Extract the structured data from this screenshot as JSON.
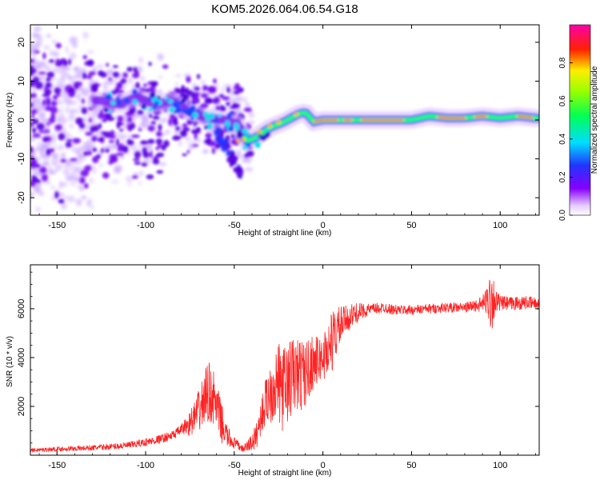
{
  "title": "KOM5.2026.064.06.54.G18",
  "chart_data": [
    {
      "type": "heatmap",
      "title": "KOM5.2026.064.06.54.G18",
      "xlabel": "Height of straight line (km)",
      "ylabel": "Frequency (Hz)",
      "xlim": [
        -165,
        122
      ],
      "ylim": [
        -24.5,
        24.5
      ],
      "xticks": [
        "-150",
        "-100",
        "-50",
        "0",
        "50",
        "100"
      ],
      "xtick_values": [
        -150,
        -100,
        -50,
        0,
        50,
        100
      ],
      "yticks": [
        "20",
        "10",
        "0",
        "-10",
        "-20"
      ],
      "ytick_values": [
        20,
        10,
        0,
        -10,
        -20
      ],
      "ridge": {
        "x": [
          -125,
          -115,
          -105,
          -95,
          -85,
          -75,
          -65,
          -55,
          -48,
          -43,
          -38,
          -30,
          -22,
          -14,
          -10,
          -5,
          0,
          10,
          20,
          30,
          40,
          50,
          60,
          70,
          80,
          90,
          100,
          110,
          120
        ],
        "y": [
          5,
          4,
          6,
          4,
          5,
          2,
          0.5,
          0,
          -1,
          -5.5,
          -4.5,
          -2,
          -0.5,
          1.5,
          2,
          -0.5,
          0,
          0,
          0,
          0,
          0,
          0,
          1,
          0.5,
          0.5,
          1,
          0.5,
          1,
          0.5
        ]
      },
      "colorbar": {
        "label": "Normalized spectral amplitude",
        "range": [
          0,
          1
        ],
        "ticks": [
          "0.0",
          "0.2",
          "0.4",
          "0.6",
          "0.8"
        ],
        "tick_values": [
          0.0,
          0.2,
          0.4,
          0.6,
          0.8
        ]
      }
    },
    {
      "type": "line",
      "xlabel": "Height of straight line (km)",
      "ylabel": "SNR (10 * v/v)",
      "xlim": [
        -165,
        122
      ],
      "ylim": [
        0,
        7800
      ],
      "xticks": [
        "-150",
        "-100",
        "-50",
        "0",
        "50",
        "100"
      ],
      "xtick_values": [
        -150,
        -100,
        -50,
        0,
        50,
        100
      ],
      "yticks": [
        "2000",
        "4000",
        "6000"
      ],
      "ytick_values": [
        2000,
        4000,
        6000
      ],
      "color": "#ff2222",
      "series": [
        {
          "name": "SNR",
          "x": [
            -165,
            -150,
            -130,
            -110,
            -95,
            -85,
            -75,
            -70,
            -65,
            -62,
            -58,
            -55,
            -52,
            -48,
            -45,
            -42,
            -38,
            -34,
            -30,
            -26,
            -22,
            -18,
            -14,
            -10,
            -6,
            -2,
            0,
            4,
            8,
            12,
            16,
            20,
            25,
            30,
            35,
            40,
            50,
            60,
            70,
            80,
            88,
            92,
            95,
            98,
            105,
            115,
            122
          ],
          "y": [
            200,
            250,
            300,
            400,
            600,
            800,
            1300,
            1800,
            2600,
            2400,
            1500,
            900,
            600,
            400,
            250,
            400,
            700,
            1800,
            2600,
            3000,
            2700,
            3200,
            3300,
            3300,
            3800,
            3900,
            4000,
            4500,
            5100,
            5500,
            5700,
            5850,
            5950,
            6000,
            6050,
            5950,
            5950,
            6000,
            6050,
            6050,
            6150,
            6300,
            6500,
            6250,
            6200,
            6250,
            6200
          ]
        }
      ],
      "noise_amplitude": {
        "x": [
          -165,
          -120,
          -80,
          -72,
          -65,
          -58,
          -52,
          -45,
          -35,
          -28,
          -22,
          -15,
          -8,
          -2,
          5,
          12,
          25,
          40,
          80,
          90,
          93,
          95,
          97,
          100,
          122
        ],
        "y": [
          80,
          120,
          200,
          700,
          1300,
          900,
          300,
          120,
          700,
          1500,
          1800,
          1600,
          1300,
          900,
          1300,
          600,
          250,
          200,
          200,
          300,
          700,
          1600,
          600,
          300,
          250
        ]
      }
    }
  ]
}
